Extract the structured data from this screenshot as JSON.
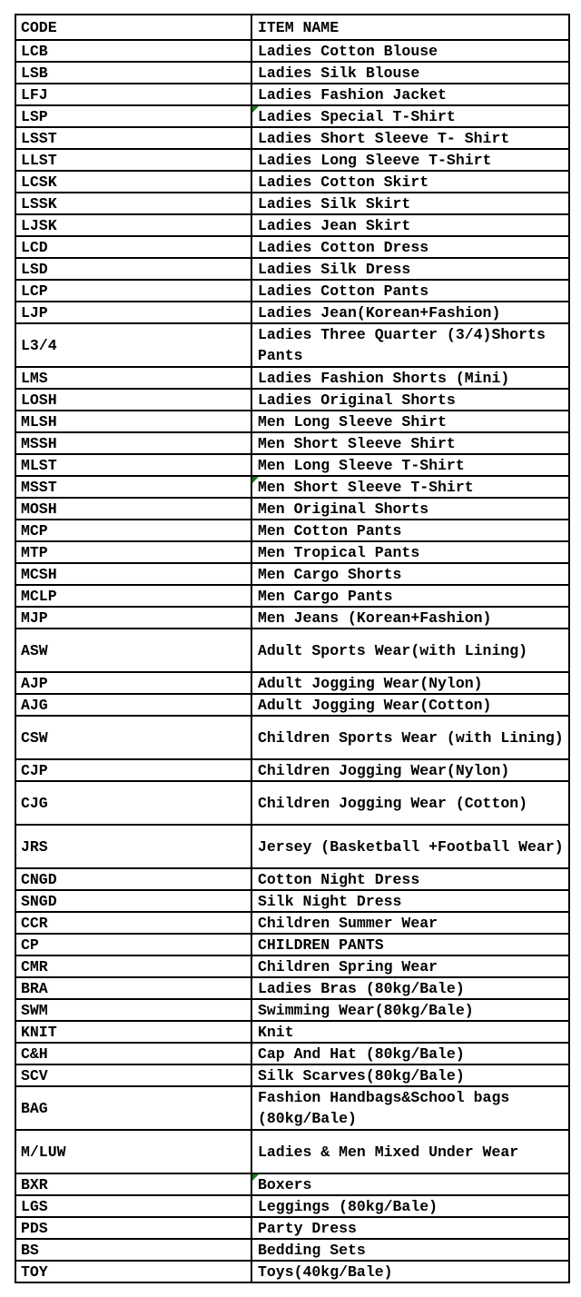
{
  "page": {
    "background": "#ffffff"
  },
  "table": {
    "colors": {
      "border": "#000000",
      "text": "#000000",
      "flag_green": "#1e7a1e",
      "cell_background": "#ffffff"
    },
    "headers": [
      {
        "label": "CODE"
      },
      {
        "label": "ITEM NAME"
      }
    ],
    "rows": [
      {
        "code": "LCB",
        "item": "Ladies Cotton Blouse"
      },
      {
        "code": "LSB",
        "item": "Ladies Silk Blouse"
      },
      {
        "code": "LFJ",
        "item": "Ladies Fashion Jacket"
      },
      {
        "code": "LSP",
        "item": "Ladies Special T-Shirt",
        "flag": true
      },
      {
        "code": "LSST",
        "item": "Ladies Short Sleeve T- Shirt"
      },
      {
        "code": "LLST",
        "item": "Ladies Long Sleeve T-Shirt"
      },
      {
        "code": "LCSK",
        "item": "Ladies Cotton Skirt"
      },
      {
        "code": "LSSK",
        "item": "Ladies Silk Skirt"
      },
      {
        "code": "LJSK",
        "item": "Ladies Jean Skirt"
      },
      {
        "code": "LCD",
        "item": "Ladies Cotton Dress"
      },
      {
        "code": "LSD",
        "item": "Ladies Silk Dress"
      },
      {
        "code": "LCP",
        "item": "Ladies Cotton Pants"
      },
      {
        "code": "LJP",
        "item": "Ladies Jean(Korean+Fashion)"
      },
      {
        "code": "L3/4",
        "item": "Ladies Three Quarter (3/4)Shorts\nPants",
        "tall": true
      },
      {
        "code": "LMS",
        "item": "Ladies Fashion Shorts (Mini)"
      },
      {
        "code": "LOSH",
        "item": "Ladies Original Shorts"
      },
      {
        "code": "MLSH",
        "item": "Men Long Sleeve Shirt"
      },
      {
        "code": "MSSH",
        "item": "Men Short Sleeve Shirt"
      },
      {
        "code": "MLST",
        "item": "Men Long Sleeve T-Shirt"
      },
      {
        "code": "MSST",
        "item": "Men Short Sleeve T-Shirt",
        "flag": true
      },
      {
        "code": "MOSH",
        "item": "Men Original Shorts"
      },
      {
        "code": "MCP",
        "item": "Men Cotton Pants"
      },
      {
        "code": "MTP",
        "item": "Men Tropical Pants"
      },
      {
        "code": "MCSH",
        "item": "Men Cargo Shorts"
      },
      {
        "code": "MCLP",
        "item": "Men Cargo Pants"
      },
      {
        "code": "MJP",
        "item": "Men Jeans (Korean+Fashion)"
      },
      {
        "code": "ASW",
        "item": "Adult Sports Wear(with Lining)",
        "tall": true
      },
      {
        "code": "AJP",
        "item": "Adult Jogging Wear(Nylon)"
      },
      {
        "code": "AJG",
        "item": "Adult Jogging Wear(Cotton)"
      },
      {
        "code": "CSW",
        "item": "Children Sports Wear (with Lining)",
        "tall": true
      },
      {
        "code": "CJP",
        "item": "Children Jogging Wear(Nylon)"
      },
      {
        "code": "CJG",
        "item": "Children Jogging Wear (Cotton)",
        "tall": true
      },
      {
        "code": "JRS",
        "item": "Jersey (Basketball +Football Wear)",
        "tall": true
      },
      {
        "code": "CNGD",
        "item": "Cotton Night Dress"
      },
      {
        "code": "SNGD",
        "item": "Silk Night Dress"
      },
      {
        "code": "CCR",
        "item": "Children Summer Wear"
      },
      {
        "code": "CP",
        "item": "CHILDREN PANTS"
      },
      {
        "code": "CMR",
        "item": "Children Spring Wear"
      },
      {
        "code": "BRA",
        "item": "Ladies Bras (80kg/Bale)"
      },
      {
        "code": "SWM",
        "item": "Swimming Wear(80kg/Bale)"
      },
      {
        "code": "KNIT",
        "item": "Knit"
      },
      {
        "code": "C&H",
        "item": "Cap And Hat (80kg/Bale)"
      },
      {
        "code": "SCV",
        "item": "Silk Scarves(80kg/Bale)"
      },
      {
        "code": "BAG",
        "item": "Fashion Handbags&School bags\n(80kg/Bale)",
        "tall": true
      },
      {
        "code": "M/LUW",
        "item": "Ladies & Men Mixed Under Wear",
        "tall": true
      },
      {
        "code": "BXR",
        "item": "Boxers",
        "flag": true
      },
      {
        "code": "LGS",
        "item": "Leggings (80kg/Bale)"
      },
      {
        "code": "PDS",
        "item": "Party Dress"
      },
      {
        "code": "BS",
        "item": "Bedding Sets"
      },
      {
        "code": "TOY",
        "item": "Toys(40kg/Bale)"
      }
    ]
  }
}
